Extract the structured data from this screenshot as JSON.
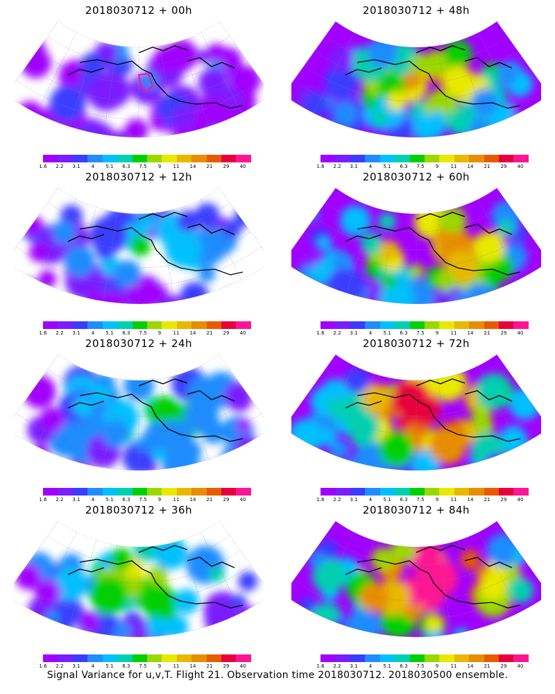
{
  "panels": [
    {
      "title": "2018030712 + 00h",
      "intensity": 0.15,
      "flight_box": true
    },
    {
      "title": "2018030712 + 48h",
      "intensity": 0.55,
      "flight_box": false
    },
    {
      "title": "2018030712 + 12h",
      "intensity": 0.25,
      "flight_box": false
    },
    {
      "title": "2018030712 + 60h",
      "intensity": 0.65,
      "flight_box": false
    },
    {
      "title": "2018030712 + 24h",
      "intensity": 0.35,
      "flight_box": false
    },
    {
      "title": "2018030712 + 72h",
      "intensity": 0.75,
      "flight_box": false
    },
    {
      "title": "2018030712 + 36h",
      "intensity": 0.45,
      "flight_box": false
    },
    {
      "title": "2018030712 + 84h",
      "intensity": 0.85,
      "flight_box": false
    }
  ],
  "colorbar": {
    "colors": [
      "#a000ff",
      "#7a1dff",
      "#3a3cff",
      "#1f8cff",
      "#00c0ff",
      "#00d0b0",
      "#00d000",
      "#9ad800",
      "#e8e800",
      "#e8b800",
      "#e88c00",
      "#e85a00",
      "#e8003c",
      "#ff1493"
    ],
    "labels": [
      "1.6",
      "2.2",
      "3.1",
      "4",
      "5.1",
      "6.3",
      "7.5",
      "9",
      "11",
      "14",
      "21",
      "29",
      "40"
    ]
  },
  "footer": "Signal Variance for u,v,T. Flight 21. Observation time 2018030712. 2018030500 ensemble."
}
